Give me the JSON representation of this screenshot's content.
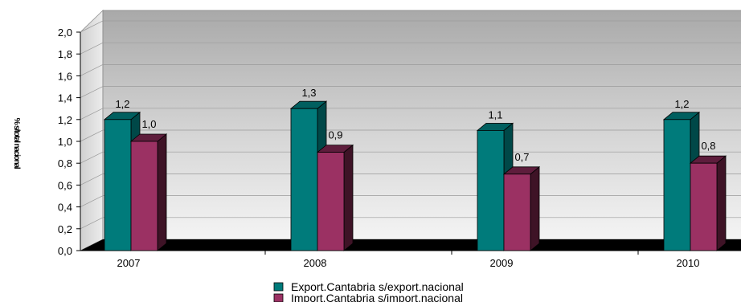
{
  "chart_data": {
    "type": "bar",
    "categories": [
      "2007",
      "2008",
      "2009",
      "2010"
    ],
    "series": [
      {
        "name": "Export.Cantabria s/export.nacional",
        "values": [
          1.2,
          1.3,
          1.1,
          1.2
        ],
        "labels": [
          "1,2",
          "1,3",
          "1,1",
          "1,2"
        ],
        "color": "#007b7b",
        "side_color": "#004848",
        "top_color": "#005f5f"
      },
      {
        "name": "Import.Cantabria s/import.nacional",
        "values": [
          1.0,
          0.9,
          0.7,
          0.8
        ],
        "labels": [
          "1,0",
          "0,9",
          "0,7",
          "0,8"
        ],
        "color": "#9b3163",
        "side_color": "#3e1326",
        "top_color": "#5e1d3c"
      }
    ],
    "ylabel": "% s/total nacional",
    "ylim": [
      0,
      2.0
    ],
    "yticks": [
      0,
      0.2,
      0.4,
      0.6,
      0.8,
      1.0,
      1.2,
      1.4,
      1.6,
      1.8,
      2.0
    ],
    "ytick_labels": [
      "0,0",
      "0,2",
      "0,4",
      "0,6",
      "0,8",
      "1,0",
      "1,2",
      "1,4",
      "1,6",
      "1,8",
      "2,0"
    ],
    "grid": true,
    "legend": "bottom-center"
  }
}
